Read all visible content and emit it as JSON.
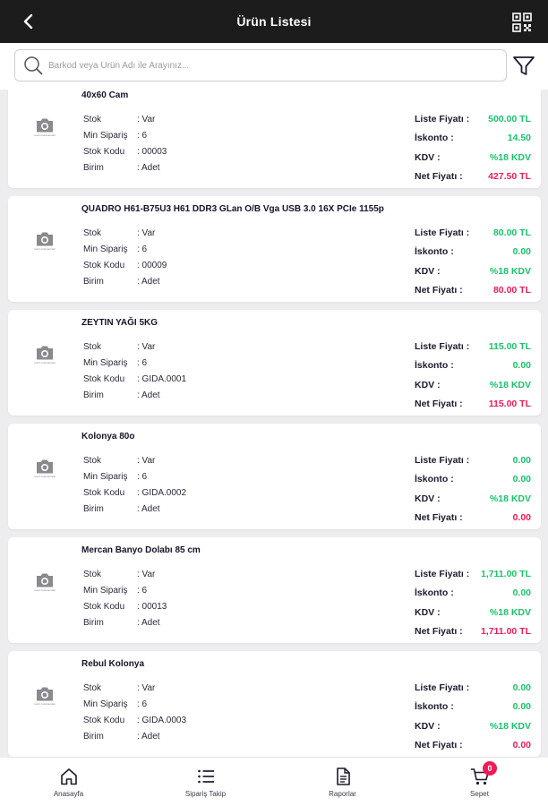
{
  "header": {
    "title": "Ürün Listesi"
  },
  "search": {
    "placeholder": "Barkod veya Ürün Adı ile Arayınız..."
  },
  "image_placeholder_text": "resim bulunamadı",
  "labels": {
    "stok": "Stok",
    "min_siparis": "Min Sipariş",
    "stok_kodu": "Stok Kodu",
    "birim": "Birim",
    "liste_fiyati": "Liste Fiyatı :",
    "iskonto": "İskonto :",
    "kdv": "KDV :",
    "net_fiyati": "Net Fiyatı :"
  },
  "products": [
    {
      "name": "40x60 Cam",
      "stok": ": Var",
      "min_siparis": ": 6",
      "stok_kodu": ": 00003",
      "birim": ": Adet",
      "liste_fiyati": "500.00 TL",
      "iskonto": "14.50",
      "kdv": "%18 KDV",
      "net_fiyati": "427.50 TL"
    },
    {
      "name": "QUADRO H61-B75U3 H61 DDR3 GLan O/B Vga USB 3.0 16X PCIe 1155p",
      "stok": ": Var",
      "min_siparis": ": 6",
      "stok_kodu": ": 00009",
      "birim": ": Adet",
      "liste_fiyati": "80.00 TL",
      "iskonto": "0.00",
      "kdv": "%18 KDV",
      "net_fiyati": "80.00 TL"
    },
    {
      "name": "ZEYTIN YAĞI 5KG",
      "stok": ": Var",
      "min_siparis": ": 6",
      "stok_kodu": ": GIDA.0001",
      "birim": ": Adet",
      "liste_fiyati": "115.00 TL",
      "iskonto": "0.00",
      "kdv": "%18 KDV",
      "net_fiyati": "115.00 TL"
    },
    {
      "name": "Kolonya 80o",
      "stok": ": Var",
      "min_siparis": ": 6",
      "stok_kodu": ": GIDA.0002",
      "birim": ": Adet",
      "liste_fiyati": "0.00",
      "iskonto": "0.00",
      "kdv": "%18 KDV",
      "net_fiyati": "0.00"
    },
    {
      "name": "Mercan Banyo Dolabı 85 cm",
      "stok": ": Var",
      "min_siparis": ": 6",
      "stok_kodu": ": 00013",
      "birim": ": Adet",
      "liste_fiyati": "1,711.00 TL",
      "iskonto": "0.00",
      "kdv": "%18 KDV",
      "net_fiyati": "1,711.00 TL"
    },
    {
      "name": "Rebul Kolonya",
      "stok": ": Var",
      "min_siparis": ": 6",
      "stok_kodu": ": GIDA.0003",
      "birim": ": Adet",
      "liste_fiyati": "0.00",
      "iskonto": "0.00",
      "kdv": "%18 KDV",
      "net_fiyati": "0.00"
    }
  ],
  "nav": {
    "home": "Anasayfa",
    "orders": "Sipariş Takip",
    "reports": "Raporlar",
    "cart": "Sepet",
    "cart_count": "0"
  },
  "colors": {
    "header_bg": "#1c1c1c",
    "price_green": "#19c46b",
    "net_red": "#ef1a59"
  },
  "icons": [
    "back-arrow-icon",
    "qr-code-icon",
    "search-icon",
    "filter-icon",
    "camera-icon",
    "home-icon",
    "list-icon",
    "document-icon",
    "cart-icon"
  ]
}
